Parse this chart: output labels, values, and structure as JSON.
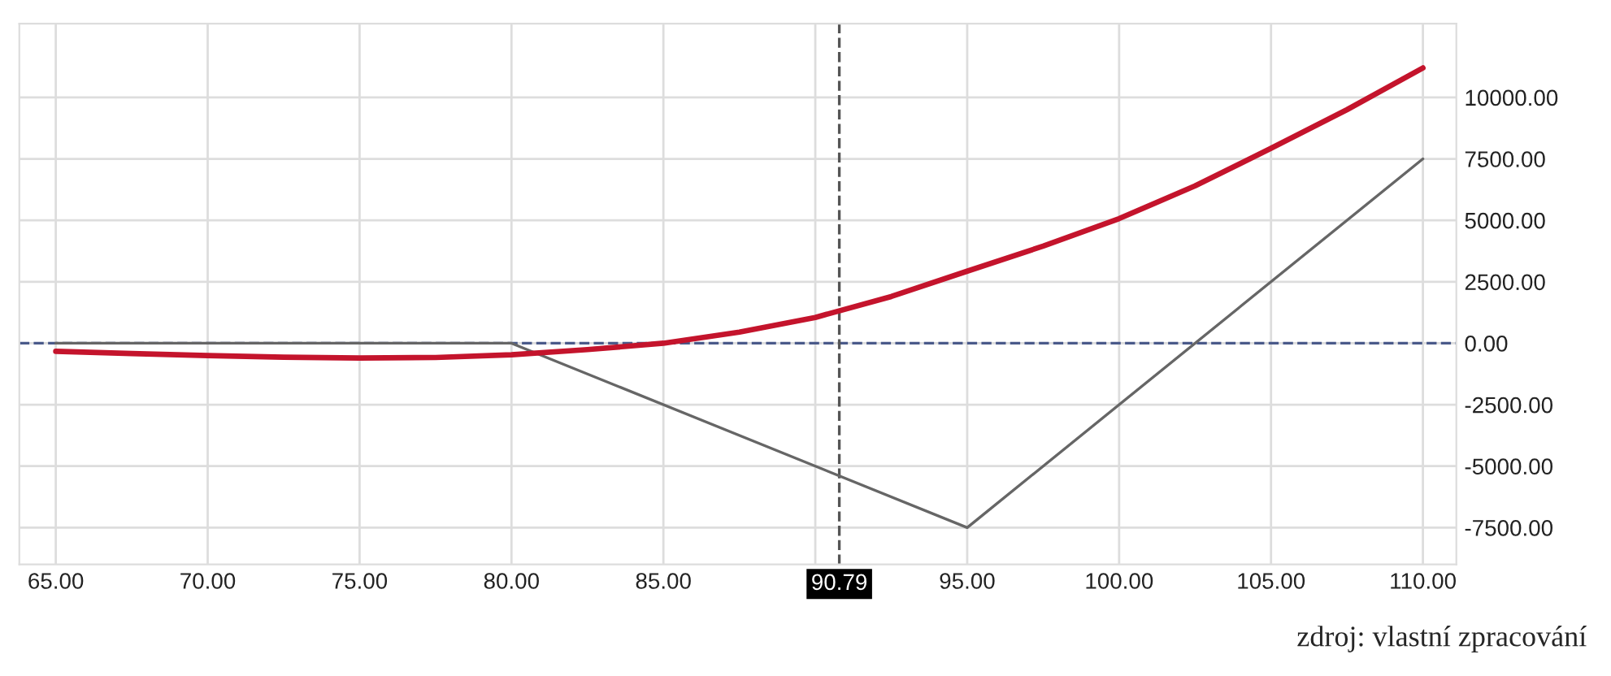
{
  "chart_data": {
    "type": "line",
    "annotations": [
      "zdroj: vlastní zpracování"
    ],
    "series": [
      {
        "color": "#c4142c",
        "x": [
          65,
          67.5,
          70,
          72.5,
          75,
          77.5,
          80,
          82.5,
          85,
          87.5,
          90,
          92.5,
          95,
          97.5,
          100,
          102.5,
          105,
          107.5,
          110
        ],
        "values": [
          -330,
          -420,
          -500,
          -570,
          -600,
          -580,
          -470,
          -260,
          0,
          450,
          1050,
          1900,
          2930,
          3950,
          5070,
          6400,
          7930,
          9500,
          11200
        ]
      },
      {
        "color": "#666666",
        "x": [
          65,
          80,
          95,
          110
        ],
        "values": [
          0,
          0,
          -7500,
          7500
        ]
      }
    ],
    "xlim": [
      63.8,
      111.1
    ],
    "ylim": [
      -9000,
      13000
    ],
    "xticks": [
      {
        "value": 65,
        "label": "65.00"
      },
      {
        "value": 70,
        "label": "70.00"
      },
      {
        "value": 75,
        "label": "75.00"
      },
      {
        "value": 80,
        "label": "80.00"
      },
      {
        "value": 85,
        "label": "85.00"
      },
      {
        "value": 90,
        "label": null
      },
      {
        "value": 95,
        "label": "95.00"
      },
      {
        "value": 100,
        "label": "100.00"
      },
      {
        "value": 105,
        "label": "105.00"
      },
      {
        "value": 110,
        "label": "110.00"
      }
    ],
    "yticks": [
      {
        "value": -7500,
        "label": "-7500.00"
      },
      {
        "value": -5000,
        "label": "-5000.00"
      },
      {
        "value": -2500,
        "label": "-2500.00"
      },
      {
        "value": 0,
        "label": "0.00"
      },
      {
        "value": 2500,
        "label": "2500.00"
      },
      {
        "value": 5000,
        "label": "5000.00"
      },
      {
        "value": 7500,
        "label": "7500.00"
      },
      {
        "value": 10000,
        "label": "10000.00"
      }
    ],
    "ref_lines": [
      {
        "axis": "y",
        "value": 0,
        "color": "#4a5a8a",
        "line_style": "dashed"
      },
      {
        "axis": "x",
        "value": 90.79,
        "label": "90.79",
        "color": "#555555",
        "line_style": "dashed"
      }
    ],
    "grid": true,
    "legend": false
  }
}
